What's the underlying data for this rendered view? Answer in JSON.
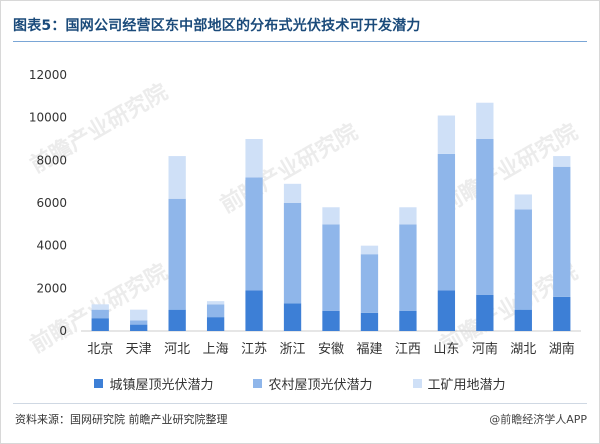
{
  "title": "图表5：国网公司经营区东中部地区的分布式光伏技术可开发潜力",
  "source": "资料来源：国网研究院 前瞻产业研究院整理",
  "brand": "@前瞻经济学人APP",
  "watermark": "前瞻产业研究院",
  "colors": {
    "urban": "#3d7fd6",
    "rural": "#8fb6ea",
    "industrial": "#cfe0f7",
    "axis_text": "#333333",
    "grid": "#e6e6e6"
  },
  "chart_data": {
    "type": "bar",
    "stacked": true,
    "categories": [
      "北京",
      "天津",
      "河北",
      "上海",
      "江苏",
      "浙江",
      "安徽",
      "福建",
      "江西",
      "山东",
      "河南",
      "湖北",
      "湖南"
    ],
    "series": [
      {
        "name": "城镇屋顶光伏潜力",
        "values": [
          600,
          300,
          1000,
          650,
          1900,
          1300,
          950,
          850,
          950,
          1900,
          1700,
          1000,
          1600
        ]
      },
      {
        "name": "农村屋顶光伏潜力",
        "values": [
          400,
          200,
          5200,
          600,
          5300,
          4700,
          4050,
          2750,
          4050,
          6400,
          7300,
          4700,
          6100
        ]
      },
      {
        "name": "工矿用地潜力",
        "values": [
          250,
          500,
          2000,
          150,
          1800,
          900,
          800,
          400,
          800,
          1800,
          1700,
          700,
          500
        ]
      }
    ],
    "yticks": [
      "0",
      "2000",
      "4000",
      "6000",
      "8000",
      "10000",
      "12000"
    ],
    "ylim": [
      0,
      12000
    ],
    "legend_position": "bottom"
  }
}
